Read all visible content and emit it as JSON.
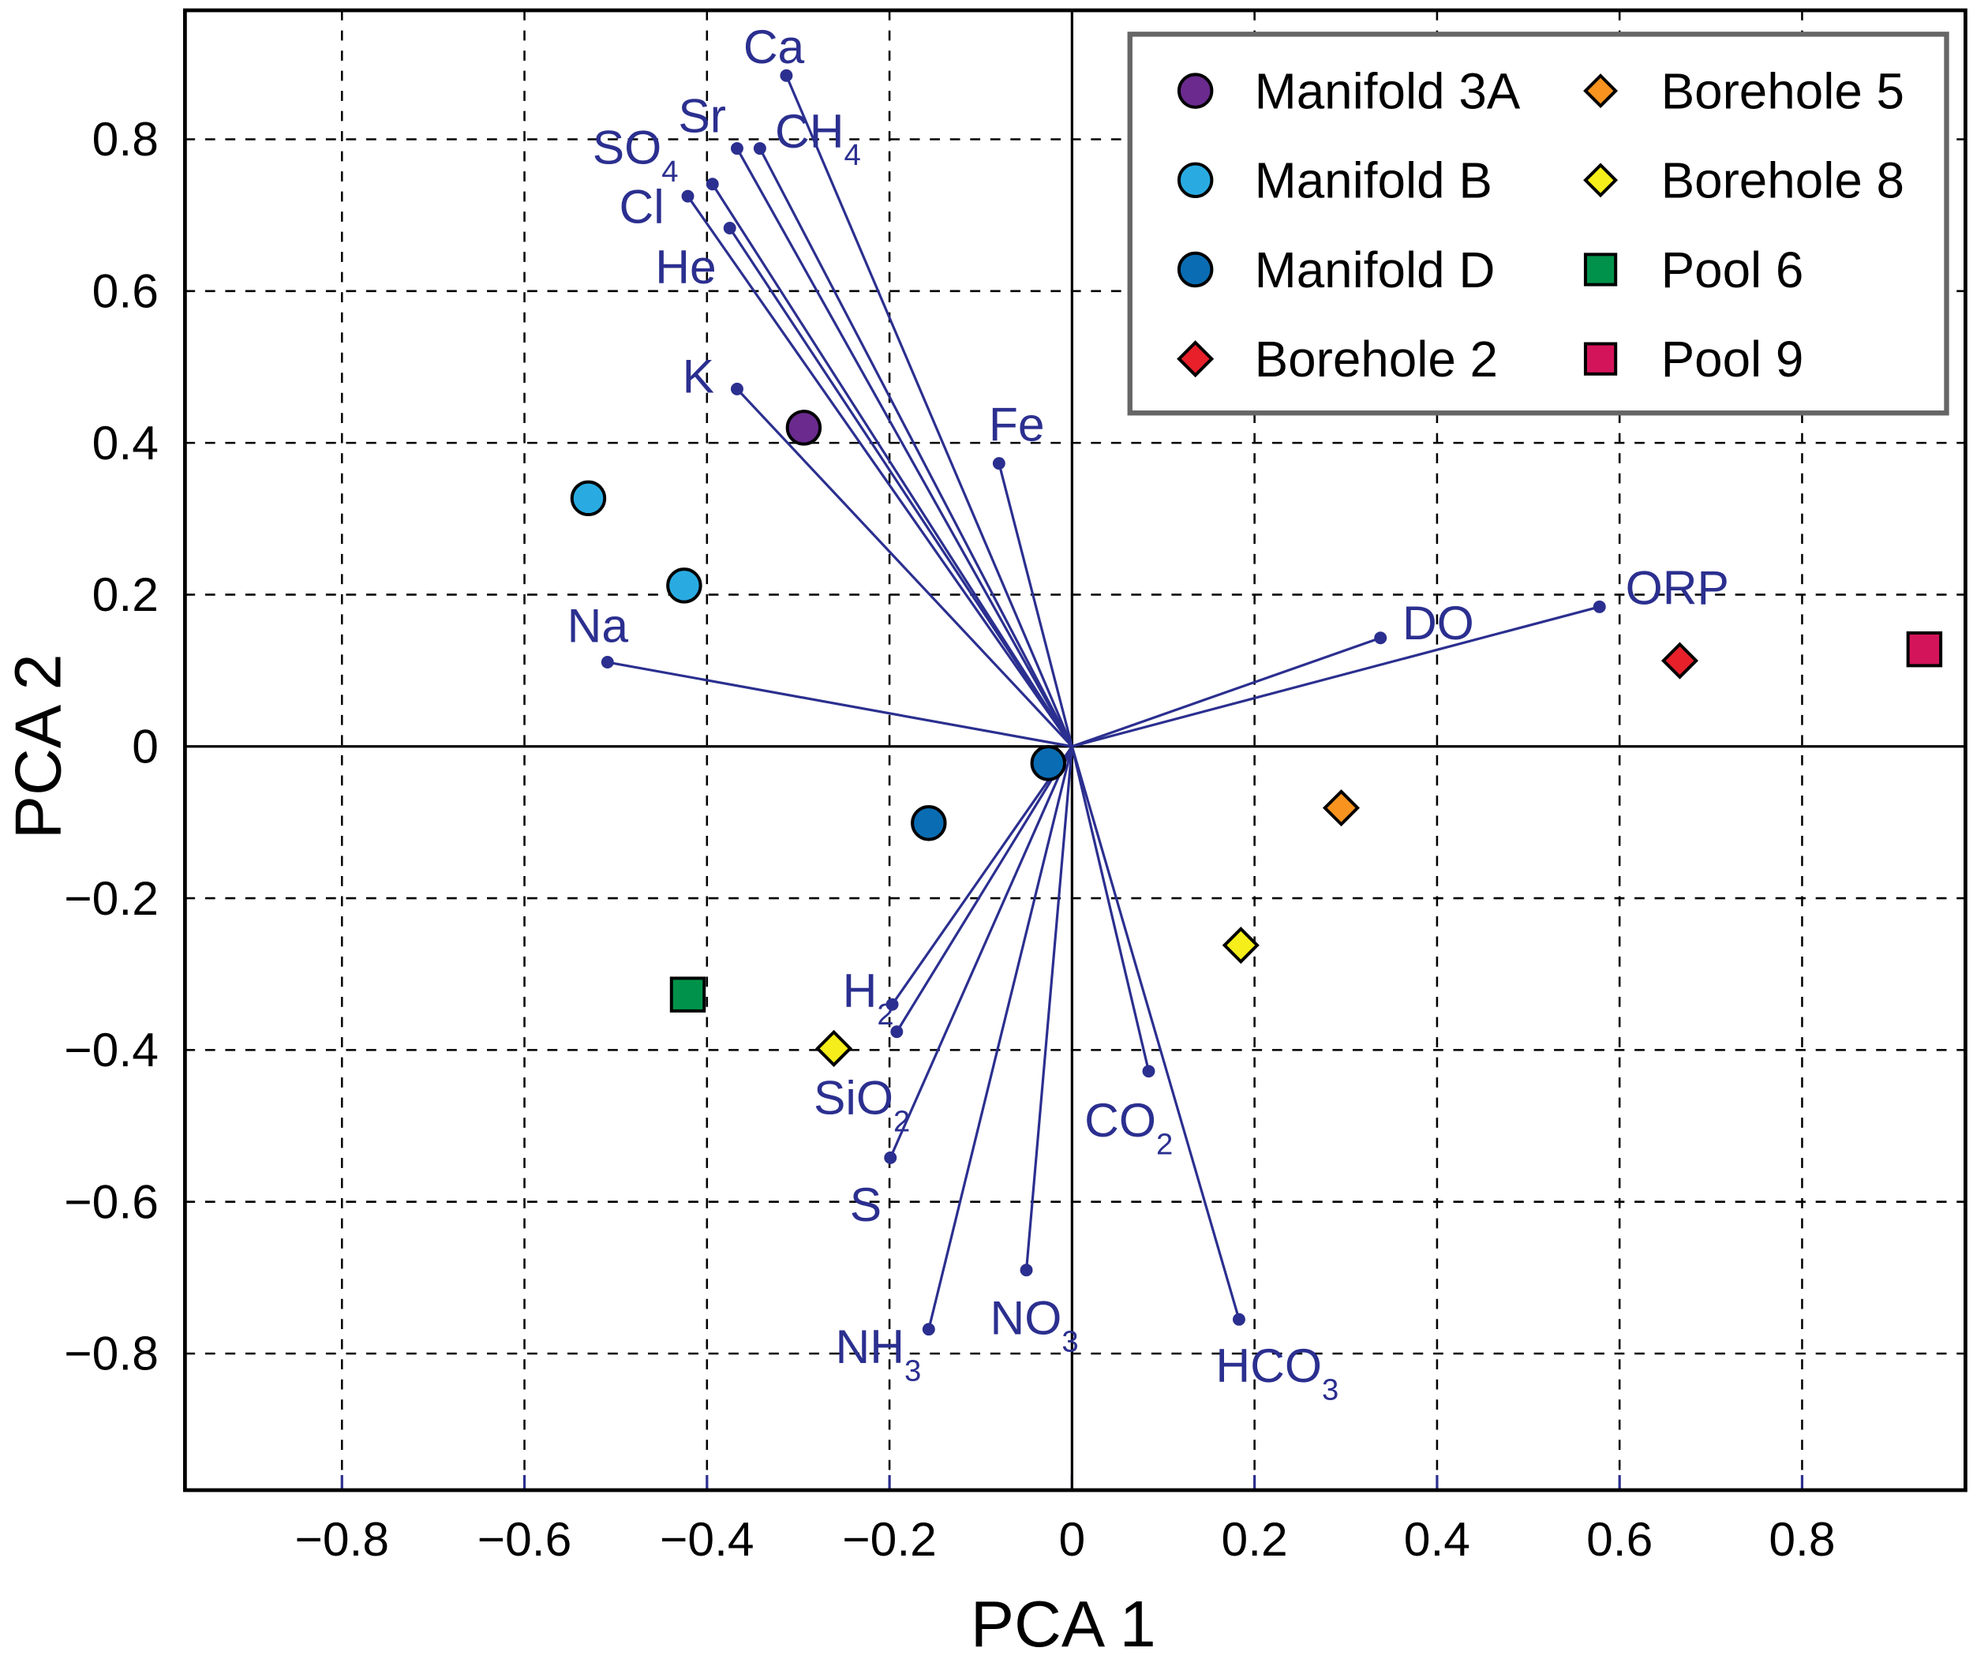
{
  "chart_data": {
    "type": "scatter",
    "title": "",
    "xlabel": "PCA 1",
    "ylabel": "PCA 2",
    "xlim": [
      -0.972,
      0.979
    ],
    "ylim": [
      -0.98,
      0.97
    ],
    "xticks": [
      -0.8,
      -0.6,
      -0.4,
      -0.2,
      0,
      0.2,
      0.4,
      0.6,
      0.8
    ],
    "yticks": [
      -0.8,
      -0.6,
      -0.4,
      -0.2,
      0,
      0.2,
      0.4,
      0.6,
      0.8
    ],
    "xtick_labels": [
      "−0.8",
      "−0.6",
      "−0.4",
      "−0.2",
      "0",
      "0.2",
      "0.4",
      "0.6",
      "0.8"
    ],
    "ytick_labels": [
      "−0.8",
      "−0.6",
      "−0.4",
      "−0.2",
      "0",
      "0.2",
      "0.4",
      "0.6",
      "0.8"
    ],
    "grid": true,
    "legend_position": "top-right",
    "vector_color": "#2b2f8f",
    "series": [
      {
        "name": "Manifold 3A",
        "marker": "circle",
        "color": "#6a2a8e",
        "points": [
          [
            -0.294,
            0.42
          ]
        ]
      },
      {
        "name": "Manifold B",
        "marker": "circle",
        "color": "#29abe2",
        "points": [
          [
            -0.53,
            0.327
          ],
          [
            -0.425,
            0.212
          ]
        ]
      },
      {
        "name": "Manifold D",
        "marker": "circle",
        "color": "#0a6db3",
        "points": [
          [
            -0.026,
            -0.022
          ],
          [
            -0.157,
            -0.101
          ]
        ]
      },
      {
        "name": "Borehole 2",
        "marker": "diamond",
        "color": "#e8202a",
        "points": [
          [
            0.666,
            0.113
          ]
        ]
      },
      {
        "name": "Borehole 5",
        "marker": "diamond",
        "color": "#f7931e",
        "points": [
          [
            0.295,
            -0.081
          ]
        ]
      },
      {
        "name": "Borehole 8",
        "marker": "diamond",
        "color": "#f5ee1a",
        "points": [
          [
            0.185,
            -0.262
          ],
          [
            -0.261,
            -0.398
          ]
        ]
      },
      {
        "name": "Pool 6",
        "marker": "square",
        "color": "#00924a",
        "points": [
          [
            -0.421,
            -0.327
          ]
        ]
      },
      {
        "name": "Pool 9",
        "marker": "square",
        "color": "#d4145a",
        "points": [
          [
            0.934,
            0.128
          ]
        ]
      }
    ],
    "loadings": [
      {
        "name": "Ca",
        "base": "Ca",
        "sub": "",
        "x": -0.313,
        "y": 0.884
      },
      {
        "name": "CH4",
        "base": "CH",
        "sub": "4",
        "x": -0.342,
        "y": 0.788
      },
      {
        "name": "Sr",
        "base": "Sr",
        "sub": "",
        "x": -0.367,
        "y": 0.788
      },
      {
        "name": "SO4",
        "base": "SO",
        "sub": "4",
        "x": -0.394,
        "y": 0.741
      },
      {
        "name": "Cl",
        "base": "Cl",
        "sub": "",
        "x": -0.421,
        "y": 0.725
      },
      {
        "name": "He",
        "base": "He",
        "sub": "",
        "x": -0.375,
        "y": 0.683
      },
      {
        "name": "K",
        "base": "K",
        "sub": "",
        "x": -0.367,
        "y": 0.471
      },
      {
        "name": "Fe",
        "base": "Fe",
        "sub": "",
        "x": -0.08,
        "y": 0.373
      },
      {
        "name": "Na",
        "base": "Na",
        "sub": "",
        "x": -0.509,
        "y": 0.111
      },
      {
        "name": "DO",
        "base": "DO",
        "sub": "",
        "x": 0.338,
        "y": 0.143
      },
      {
        "name": "ORP",
        "base": "ORP",
        "sub": "",
        "x": 0.578,
        "y": 0.184
      },
      {
        "name": "H2",
        "base": "H",
        "sub": "2",
        "x": -0.197,
        "y": -0.34
      },
      {
        "name": "SiO2",
        "base": "SiO",
        "sub": "2",
        "x": -0.192,
        "y": -0.376
      },
      {
        "name": "S",
        "base": "S",
        "sub": "",
        "x": -0.199,
        "y": -0.542
      },
      {
        "name": "NH3",
        "base": "NH",
        "sub": "3",
        "x": -0.157,
        "y": -0.768
      },
      {
        "name": "NO3",
        "base": "NO",
        "sub": "3",
        "x": -0.05,
        "y": -0.69
      },
      {
        "name": "CO2",
        "base": "CO",
        "sub": "2",
        "x": 0.084,
        "y": -0.428
      },
      {
        "name": "HCO3",
        "base": "HCO",
        "sub": "3",
        "x": 0.183,
        "y": -0.755
      }
    ]
  }
}
